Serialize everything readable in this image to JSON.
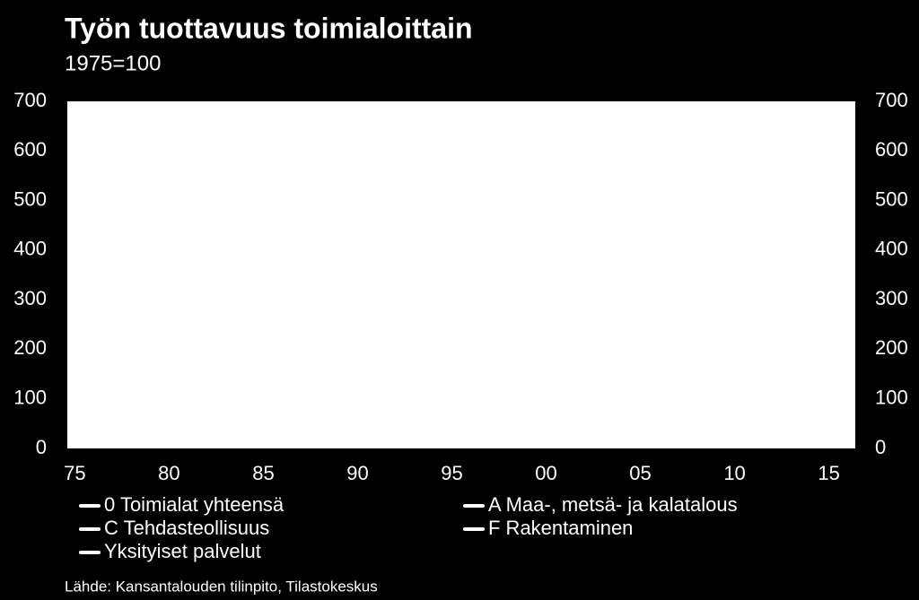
{
  "chart_data": {
    "type": "line",
    "title": "Työn tuottavuus toimialoittain",
    "subtitle": "1975=100",
    "source": "Lähde: Kansantalouden tilinpito, Tilastokeskus",
    "xlim": [
      1974.6,
      2016.4
    ],
    "xticks": [
      {
        "value": 1975,
        "label": "75"
      },
      {
        "value": 1980,
        "label": "80"
      },
      {
        "value": 1985,
        "label": "85"
      },
      {
        "value": 1990,
        "label": "90"
      },
      {
        "value": 1995,
        "label": "95"
      },
      {
        "value": 2000,
        "label": "00"
      },
      {
        "value": 2005,
        "label": "05"
      },
      {
        "value": 2010,
        "label": "10"
      },
      {
        "value": 2015,
        "label": "15"
      }
    ],
    "ylim": [
      0,
      700
    ],
    "yticks": [
      0,
      100,
      200,
      300,
      400,
      500,
      600,
      700
    ],
    "y2lim": [
      0,
      700
    ],
    "y2ticks": [
      0,
      100,
      200,
      300,
      400,
      500,
      600,
      700
    ],
    "series": [
      {
        "name": "0 Toimialat yhteensä",
        "color": "#ffffff"
      },
      {
        "name": "A Maa-, metsä- ja kalatalous",
        "color": "#ffffff"
      },
      {
        "name": "C Tehdasteollisuus",
        "color": "#ffffff"
      },
      {
        "name": "F Rakentaminen",
        "color": "#ffffff"
      },
      {
        "name": "Yksityiset palvelut",
        "color": "#ffffff"
      }
    ]
  }
}
